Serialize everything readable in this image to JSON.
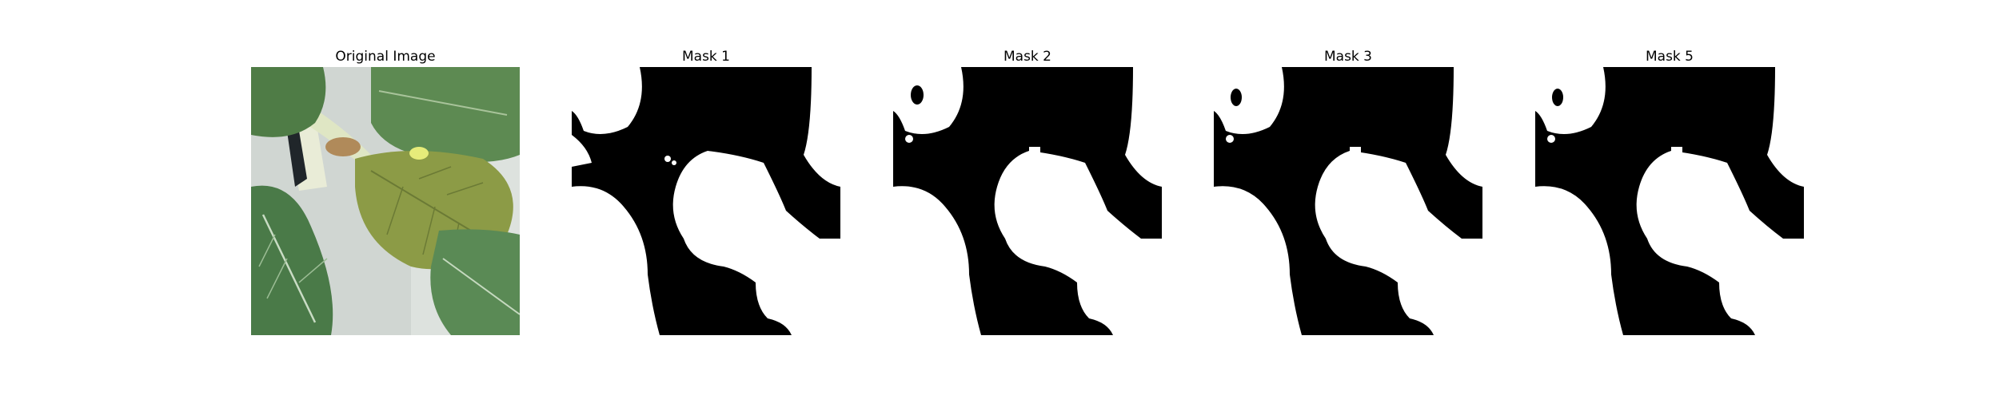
{
  "panels": [
    {
      "title": "Original Image",
      "kind": "photo",
      "content": "plant leaves"
    },
    {
      "title": "Mask 1",
      "kind": "mask"
    },
    {
      "title": "Mask 2",
      "kind": "mask"
    },
    {
      "title": "Mask 3",
      "kind": "mask"
    },
    {
      "title": "Mask 5",
      "kind": "mask"
    }
  ],
  "colors": {
    "background": "#ffffff",
    "mask_foreground": "#ffffff",
    "mask_background": "#000000",
    "leaf_dark": "#4c7a44",
    "leaf_mid": "#6f9a5e",
    "leaf_yellow": "#8a9a45",
    "backdrop": "#d2d8d4"
  }
}
